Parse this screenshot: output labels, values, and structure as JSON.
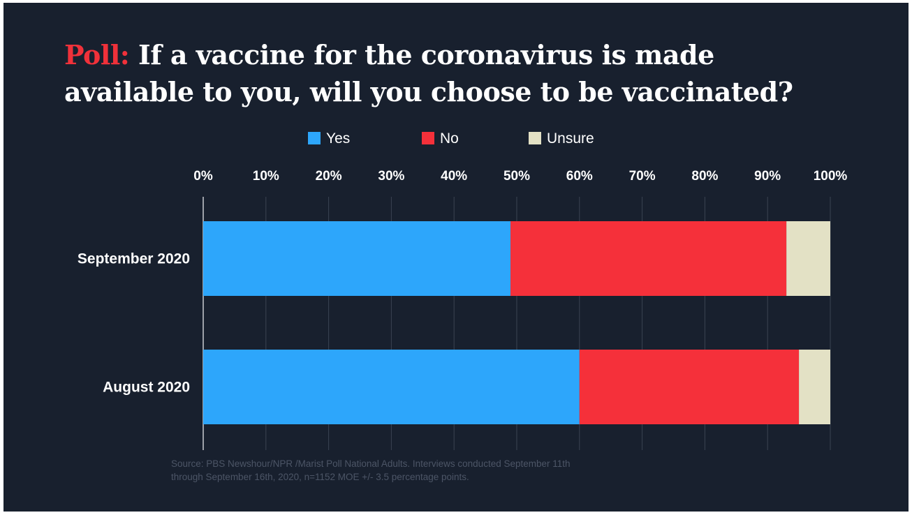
{
  "title": {
    "lead": "Poll:",
    "line1": "If a vaccine for the coronavirus is made",
    "line2": "available to you, will you choose to be vaccinated?"
  },
  "chart_data": {
    "type": "bar",
    "orientation": "horizontal",
    "stacked": true,
    "categories": [
      "September 2020",
      "August 2020"
    ],
    "series": [
      {
        "name": "Yes",
        "color": "#2da6fb",
        "values": [
          49,
          60
        ]
      },
      {
        "name": "No",
        "color": "#f5303a",
        "values": [
          44,
          35
        ]
      },
      {
        "name": "Unsure",
        "color": "#e3e1c5",
        "values": [
          7,
          5
        ]
      }
    ],
    "xlim": [
      0,
      100
    ],
    "xticks": [
      "0%",
      "10%",
      "20%",
      "30%",
      "40%",
      "50%",
      "60%",
      "70%",
      "80%",
      "90%",
      "100%"
    ],
    "grid": true,
    "legend_position": "top"
  },
  "source": {
    "line1": "Source: PBS Newshour/NPR /Marist Poll National Adults. Interviews conducted September 11th",
    "line2": "through September 16th, 2020, n=1152 MOE +/- 3.5 percentage points."
  }
}
